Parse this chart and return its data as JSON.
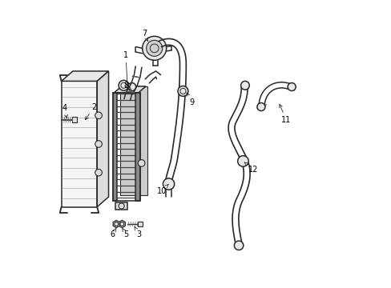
{
  "bg_color": "#ffffff",
  "line_color": "#2a2a2a",
  "figsize": [
    4.89,
    3.6
  ],
  "dpi": 100,
  "xlim": [
    0,
    10
  ],
  "ylim": [
    0,
    10
  ]
}
